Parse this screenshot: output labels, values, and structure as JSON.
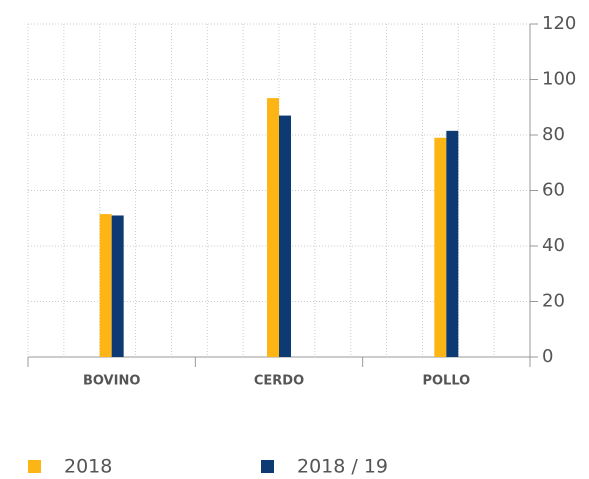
{
  "chart_data": {
    "type": "bar",
    "categories": [
      "BOVINO",
      "CERDO",
      "POLLO"
    ],
    "series": [
      {
        "name": "2018",
        "color": "#fdb515",
        "values": [
          51.5,
          93.3,
          79
        ]
      },
      {
        "name": "2018 / 19",
        "color": "#0d3a73",
        "values": [
          51,
          87,
          81.5
        ]
      }
    ],
    "ylim": [
      0,
      120
    ],
    "yticks": [
      0,
      20,
      40,
      60,
      80,
      100,
      120
    ],
    "grid": true,
    "legend": "bottom"
  }
}
